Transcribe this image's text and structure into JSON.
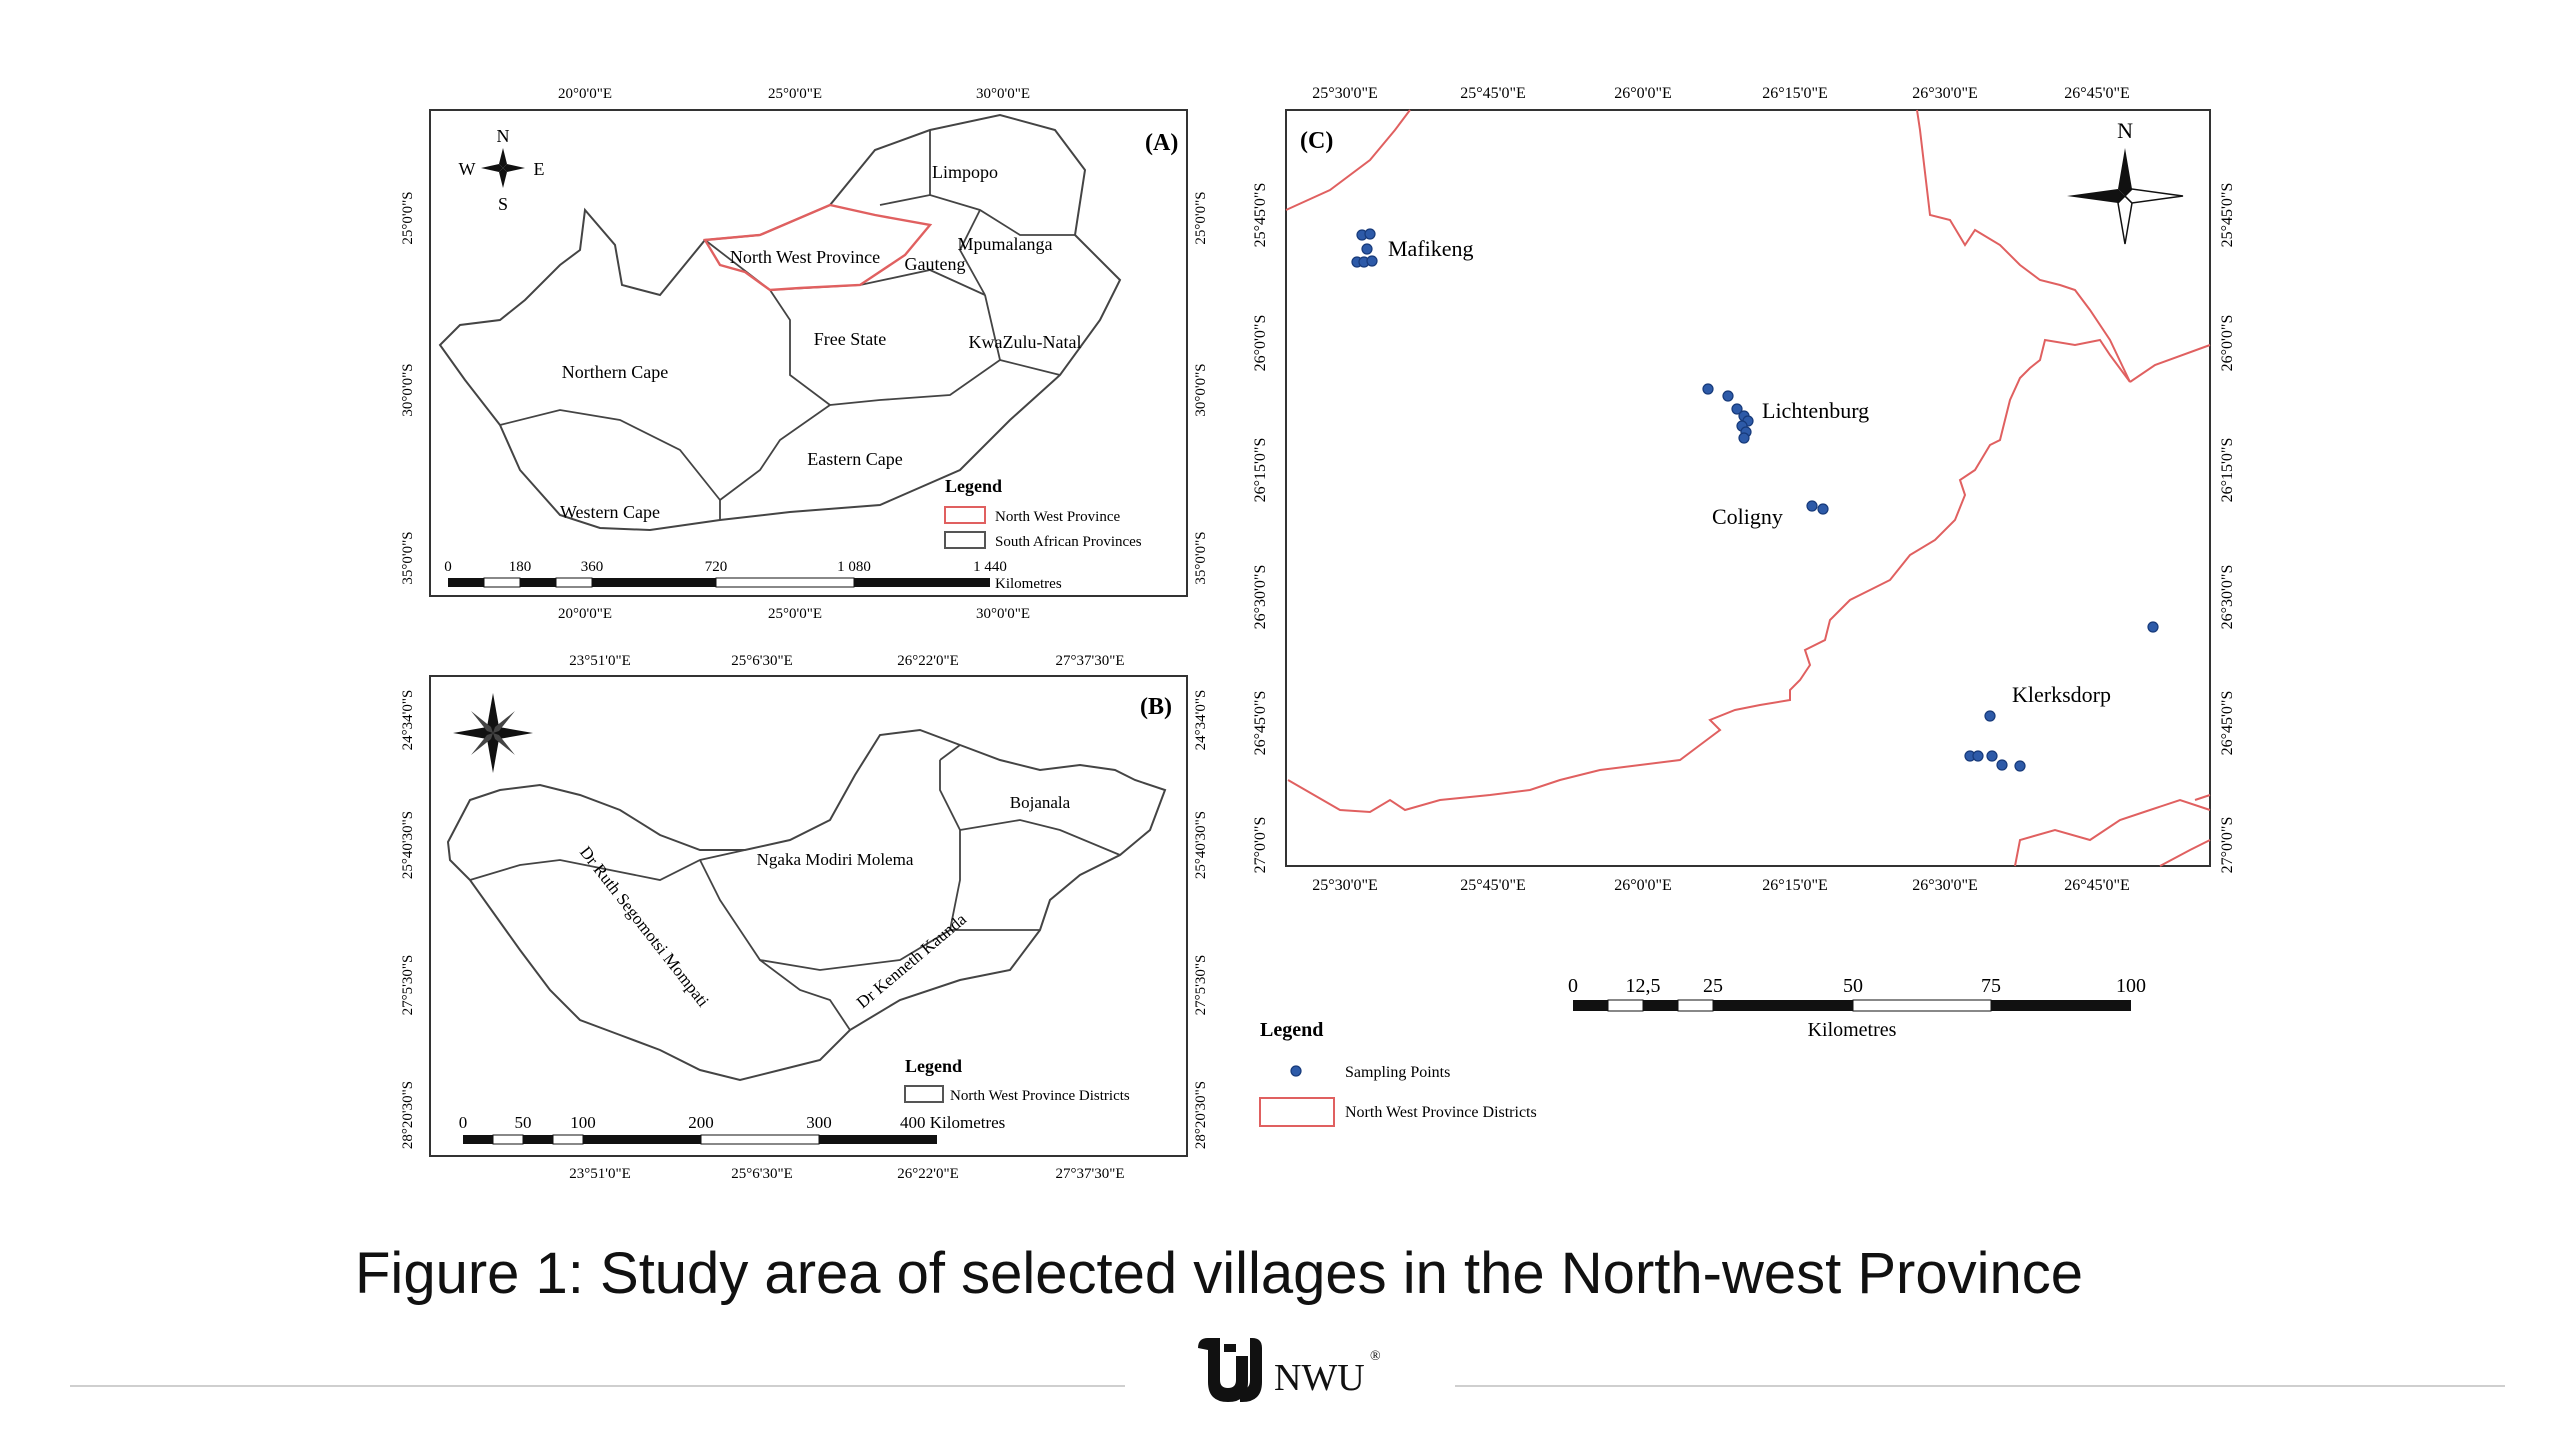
{
  "panelA": {
    "label": "(A)",
    "top_ticks": [
      "20°0'0\"E",
      "25°0'0\"E",
      "30°0'0\"E"
    ],
    "bottom_ticks": [
      "20°0'0\"E",
      "25°0'0\"E",
      "30°0'0\"E"
    ],
    "left_ticks": [
      "25°0'0\"S",
      "30°0'0\"S",
      "35°0'0\"S"
    ],
    "right_ticks": [
      "25°0'0\"S",
      "30°0'0\"S",
      "35°0'0\"S"
    ],
    "provinces": [
      "Limpopo",
      "Mpumalanga",
      "Gauteng",
      "North West Province",
      "Free State",
      "KwaZulu-Natal",
      "Northern Cape",
      "Eastern Cape",
      "Western Cape"
    ],
    "legend_title": "Legend",
    "legend_items": [
      "North West Province",
      "South African Provinces"
    ],
    "scale_values": [
      "0",
      "180",
      "360",
      "720",
      "1 080",
      "1 440"
    ],
    "scale_unit": "Kilometres",
    "compass": {
      "n": "N",
      "s": "S",
      "e": "E",
      "w": "W"
    }
  },
  "panelB": {
    "label": "(B)",
    "top_ticks": [
      "23°51'0\"E",
      "25°6'30\"E",
      "26°22'0\"E",
      "27°37'30\"E"
    ],
    "bottom_ticks": [
      "23°51'0\"E",
      "25°6'30\"E",
      "26°22'0\"E",
      "27°37'30\"E"
    ],
    "left_ticks": [
      "24°34'0\"S",
      "25°40'30\"S",
      "27°5'30\"S",
      "28°20'30\"S"
    ],
    "right_ticks": [
      "24°34'0\"S",
      "25°40'30\"S",
      "27°5'30\"S",
      "28°20'30\"S"
    ],
    "districts": [
      "Bojanala",
      "Ngaka Modiri Molema",
      "Dr Ruth Segomotsi Mompati",
      "Dr Kenneth Kaunda"
    ],
    "legend_title": "Legend",
    "legend_items": [
      "North West Province Districts"
    ],
    "scale_values": [
      "0",
      "50",
      "100",
      "200",
      "300",
      "400 Kilometres"
    ]
  },
  "panelC": {
    "label": "(C)",
    "top_ticks": [
      "25°30'0\"E",
      "25°45'0\"E",
      "26°0'0\"E",
      "26°15'0\"E",
      "26°30'0\"E",
      "26°45'0\"E"
    ],
    "bottom_ticks": [
      "25°30'0\"E",
      "25°45'0\"E",
      "26°0'0\"E",
      "26°15'0\"E",
      "26°30'0\"E",
      "26°45'0\"E"
    ],
    "left_ticks": [
      "25°45'0\"S",
      "26°0'0\"S",
      "26°15'0\"S",
      "26°30'0\"S",
      "26°45'0\"S",
      "27°0'0\"S"
    ],
    "right_ticks": [
      "25°45'0\"S",
      "26°0'0\"S",
      "26°15'0\"S",
      "26°30'0\"S",
      "26°45'0\"S",
      "27°0'0\"S"
    ],
    "towns": [
      "Mafikeng",
      "Lichtenburg",
      "Coligny",
      "Klerksdorp"
    ],
    "compass_n": "N",
    "scale_values": [
      "0",
      "12,5",
      "25",
      "50",
      "75",
      "100"
    ],
    "scale_unit": "Kilometres",
    "legend_title": "Legend",
    "legend_items": [
      "Sampling Points",
      "North West Province Districts"
    ]
  },
  "caption": {
    "bold": "Figure 1:",
    "text": " Study area of selected villages in the North-west Province"
  },
  "logo_text": "NWU",
  "logo_reg": "®",
  "colors": {
    "boundary": "#e06060",
    "point": "#2d5aa8",
    "point_edge": "#173a7a",
    "frame": "#333333"
  }
}
